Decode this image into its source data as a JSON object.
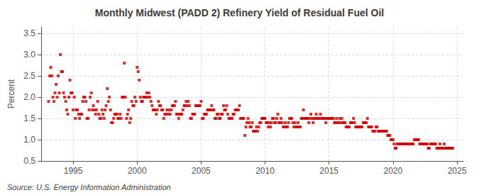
{
  "chart_data": {
    "type": "scatter",
    "title": "Monthly Midwest (PADD 2) Refinery Yield of Residual Fuel Oil",
    "ylabel": "Percent",
    "source": "Source: U.S. Energy Information Administration",
    "color": "#cc0000",
    "marker": "square",
    "grid": true,
    "xlim": [
      1992.5,
      2025.5
    ],
    "ylim": [
      0.5,
      3.65
    ],
    "xticks": [
      1995,
      2000,
      2005,
      2010,
      2015,
      2020,
      2025
    ],
    "yticks": [
      0.5,
      {
        "value": 1.0,
        "label": "1.0"
      },
      1.5,
      {
        "value": 2.0,
        "label": "2.0"
      },
      2.5,
      {
        "value": 3.0,
        "label": "3.0"
      },
      3.5
    ],
    "x": [
      1993.08,
      1993.17,
      1993.25,
      1993.33,
      1993.42,
      1993.5,
      1993.58,
      1993.67,
      1993.75,
      1993.83,
      1993.92,
      1994.0,
      1994.08,
      1994.17,
      1994.25,
      1994.33,
      1994.42,
      1994.5,
      1994.58,
      1994.67,
      1994.75,
      1994.83,
      1994.92,
      1995.0,
      1995.08,
      1995.17,
      1995.25,
      1995.33,
      1995.42,
      1995.5,
      1995.58,
      1995.67,
      1995.75,
      1995.83,
      1995.92,
      1996.0,
      1996.08,
      1996.17,
      1996.25,
      1996.33,
      1996.42,
      1996.5,
      1996.58,
      1996.67,
      1996.75,
      1996.83,
      1996.92,
      1997.0,
      1997.08,
      1997.17,
      1997.25,
      1997.33,
      1997.42,
      1997.5,
      1997.58,
      1997.67,
      1997.75,
      1997.83,
      1997.92,
      1998.0,
      1998.08,
      1998.17,
      1998.25,
      1998.33,
      1998.42,
      1998.5,
      1998.58,
      1998.67,
      1998.75,
      1998.83,
      1998.92,
      1999.0,
      1999.08,
      1999.17,
      1999.25,
      1999.33,
      1999.42,
      1999.5,
      1999.58,
      1999.67,
      1999.75,
      1999.83,
      1999.92,
      2000.0,
      2000.08,
      2000.17,
      2000.25,
      2000.33,
      2000.42,
      2000.5,
      2000.58,
      2000.67,
      2000.75,
      2000.83,
      2000.92,
      2001.0,
      2001.08,
      2001.17,
      2001.25,
      2001.33,
      2001.42,
      2001.5,
      2001.58,
      2001.67,
      2001.75,
      2001.83,
      2001.92,
      2002.0,
      2002.08,
      2002.17,
      2002.25,
      2002.33,
      2002.42,
      2002.5,
      2002.58,
      2002.67,
      2002.75,
      2002.83,
      2002.92,
      2003.0,
      2003.08,
      2003.17,
      2003.25,
      2003.33,
      2003.42,
      2003.5,
      2003.58,
      2003.67,
      2003.75,
      2003.83,
      2003.92,
      2004.0,
      2004.08,
      2004.17,
      2004.25,
      2004.33,
      2004.42,
      2004.5,
      2004.58,
      2004.67,
      2004.75,
      2004.83,
      2004.92,
      2005.0,
      2005.08,
      2005.17,
      2005.25,
      2005.33,
      2005.42,
      2005.5,
      2005.58,
      2005.67,
      2005.75,
      2005.83,
      2005.92,
      2006.0,
      2006.08,
      2006.17,
      2006.25,
      2006.33,
      2006.42,
      2006.5,
      2006.58,
      2006.67,
      2006.75,
      2006.83,
      2006.92,
      2007.0,
      2007.08,
      2007.17,
      2007.25,
      2007.33,
      2007.42,
      2007.5,
      2007.58,
      2007.67,
      2007.75,
      2007.83,
      2007.92,
      2008.0,
      2008.08,
      2008.17,
      2008.25,
      2008.33,
      2008.42,
      2008.5,
      2008.58,
      2008.67,
      2008.75,
      2008.83,
      2008.92,
      2009.0,
      2009.08,
      2009.17,
      2009.25,
      2009.33,
      2009.42,
      2009.5,
      2009.58,
      2009.67,
      2009.75,
      2009.83,
      2009.92,
      2010.0,
      2010.08,
      2010.17,
      2010.25,
      2010.33,
      2010.42,
      2010.5,
      2010.58,
      2010.67,
      2010.75,
      2010.83,
      2010.92,
      2011.0,
      2011.08,
      2011.17,
      2011.25,
      2011.33,
      2011.42,
      2011.5,
      2011.58,
      2011.67,
      2011.75,
      2011.83,
      2011.92,
      2012.0,
      2012.08,
      2012.17,
      2012.25,
      2012.33,
      2012.42,
      2012.5,
      2012.58,
      2012.67,
      2012.75,
      2012.83,
      2012.92,
      2013.0,
      2013.08,
      2013.17,
      2013.25,
      2013.33,
      2013.42,
      2013.5,
      2013.58,
      2013.67,
      2013.75,
      2013.83,
      2013.92,
      2014.0,
      2014.08,
      2014.17,
      2014.25,
      2014.33,
      2014.42,
      2014.5,
      2014.58,
      2014.67,
      2014.75,
      2014.83,
      2014.92,
      2015.0,
      2015.08,
      2015.17,
      2015.25,
      2015.33,
      2015.42,
      2015.5,
      2015.58,
      2015.67,
      2015.75,
      2015.83,
      2015.92,
      2016.0,
      2016.08,
      2016.17,
      2016.25,
      2016.33,
      2016.42,
      2016.5,
      2016.58,
      2016.67,
      2016.75,
      2016.83,
      2016.92,
      2017.0,
      2017.08,
      2017.17,
      2017.25,
      2017.33,
      2017.42,
      2017.5,
      2017.58,
      2017.67,
      2017.75,
      2017.83,
      2017.92,
      2018.0,
      2018.08,
      2018.17,
      2018.25,
      2018.33,
      2018.42,
      2018.5,
      2018.58,
      2018.67,
      2018.75,
      2018.83,
      2018.92,
      2019.0,
      2019.08,
      2019.17,
      2019.25,
      2019.33,
      2019.42,
      2019.5,
      2019.58,
      2019.67,
      2019.75,
      2019.83,
      2019.92,
      2020.0,
      2020.08,
      2020.17,
      2020.25,
      2020.33,
      2020.42,
      2020.5,
      2020.58,
      2020.67,
      2020.75,
      2020.83,
      2020.92,
      2021.0,
      2021.08,
      2021.17,
      2021.25,
      2021.33,
      2021.42,
      2021.5,
      2021.58,
      2021.67,
      2021.75,
      2021.83,
      2021.92,
      2022.0,
      2022.08,
      2022.17,
      2022.25,
      2022.33,
      2022.42,
      2022.5,
      2022.58,
      2022.67,
      2022.75,
      2022.83,
      2022.92,
      2023.0,
      2023.08,
      2023.17,
      2023.25,
      2023.33,
      2023.42,
      2023.5,
      2023.58,
      2023.67,
      2023.75,
      2023.83,
      2023.92,
      2024.0,
      2024.08,
      2024.17,
      2024.25,
      2024.33,
      2024.42,
      2024.5,
      2024.58,
      2024.67
    ],
    "values": [
      1.9,
      2.5,
      2.7,
      2.5,
      2.0,
      1.9,
      2.1,
      2.3,
      2.0,
      2.5,
      2.1,
      3.0,
      2.6,
      2.6,
      2.1,
      2.0,
      1.9,
      1.7,
      1.6,
      2.0,
      2.4,
      2.1,
      2.1,
      1.7,
      2.0,
      1.5,
      1.7,
      1.7,
      1.6,
      1.5,
      1.6,
      1.6,
      1.9,
      2.0,
      2.0,
      1.9,
      1.5,
      1.5,
      1.7,
      2.0,
      2.1,
      1.7,
      1.8,
      1.7,
      1.6,
      1.7,
      1.9,
      1.6,
      1.5,
      1.5,
      1.7,
      1.6,
      1.5,
      1.7,
      1.8,
      2.2,
      1.9,
      2.0,
      1.7,
      1.4,
      1.4,
      1.5,
      1.6,
      1.6,
      1.6,
      1.5,
      1.5,
      1.6,
      1.5,
      2.0,
      2.0,
      2.8,
      2.0,
      1.5,
      1.6,
      1.7,
      1.4,
      1.5,
      1.9,
      1.8,
      1.8,
      2.0,
      1.9,
      2.7,
      2.6,
      2.4,
      2.0,
      1.9,
      1.9,
      2.0,
      2.0,
      2.0,
      2.1,
      2.0,
      2.1,
      2.0,
      1.9,
      1.8,
      1.7,
      1.7,
      1.7,
      1.6,
      1.7,
      1.9,
      1.8,
      1.8,
      1.7,
      1.7,
      1.5,
      1.6,
      1.6,
      1.7,
      1.6,
      1.7,
      1.6,
      1.7,
      1.8,
      1.8,
      1.8,
      1.9,
      1.6,
      1.6,
      1.5,
      1.6,
      1.6,
      1.6,
      1.7,
      1.8,
      1.8,
      1.9,
      1.8,
      1.9,
      1.8,
      1.5,
      1.5,
      1.6,
      1.6,
      1.6,
      1.8,
      1.8,
      1.8,
      1.8,
      1.8,
      1.9,
      1.5,
      1.5,
      1.6,
      1.6,
      1.6,
      1.7,
      1.7,
      1.7,
      1.7,
      1.8,
      1.7,
      1.7,
      1.5,
      1.5,
      1.6,
      1.6,
      1.5,
      1.5,
      1.6,
      1.6,
      1.8,
      1.7,
      1.7,
      1.8,
      1.6,
      1.5,
      1.5,
      1.5,
      1.5,
      1.6,
      1.6,
      1.7,
      1.7,
      1.7,
      1.7,
      1.8,
      1.5,
      1.5,
      1.5,
      1.5,
      1.1,
      1.3,
      1.4,
      1.5,
      1.4,
      1.3,
      1.3,
      1.4,
      1.2,
      1.2,
      1.2,
      1.3,
      1.2,
      1.3,
      1.4,
      1.4,
      1.5,
      1.5,
      1.5,
      1.5,
      1.4,
      1.4,
      1.3,
      1.4,
      1.3,
      1.4,
      1.5,
      1.5,
      1.4,
      1.4,
      1.5,
      1.6,
      1.4,
      1.4,
      1.5,
      1.4,
      1.3,
      1.3,
      1.4,
      1.3,
      1.3,
      1.4,
      1.5,
      1.5,
      1.5,
      1.4,
      1.3,
      1.4,
      1.3,
      1.3,
      1.4,
      1.3,
      1.3,
      1.5,
      1.5,
      1.7,
      1.5,
      1.5,
      1.5,
      1.5,
      1.4,
      1.5,
      1.6,
      1.5,
      1.4,
      1.5,
      1.5,
      1.6,
      1.5,
      1.5,
      1.5,
      1.6,
      1.5,
      1.5,
      1.5,
      1.5,
      1.4,
      1.5,
      1.5,
      1.5,
      1.5,
      1.5,
      1.5,
      1.5,
      1.4,
      1.4,
      1.5,
      1.4,
      1.4,
      1.5,
      1.4,
      1.5,
      1.4,
      1.4,
      1.4,
      1.3,
      1.3,
      1.3,
      1.3,
      1.4,
      1.4,
      1.4,
      1.5,
      1.4,
      1.3,
      1.3,
      1.3,
      1.3,
      1.3,
      1.3,
      1.3,
      1.4,
      1.4,
      1.4,
      1.4,
      1.5,
      1.3,
      1.3,
      1.3,
      1.3,
      1.2,
      1.2,
      1.2,
      1.3,
      1.3,
      1.2,
      1.2,
      1.2,
      1.2,
      1.2,
      1.2,
      1.2,
      1.2,
      1.2,
      1.1,
      1.1,
      1.1,
      1.0,
      1.0,
      1.0,
      0.9,
      0.8,
      0.8,
      0.9,
      0.9,
      0.9,
      0.9,
      0.9,
      0.9,
      0.9,
      0.9,
      0.9,
      0.9,
      0.9,
      0.9,
      0.9,
      0.9,
      0.9,
      0.9,
      1.0,
      1.0,
      1.0,
      1.0,
      1.0,
      0.9,
      0.9,
      0.9,
      0.9,
      0.9,
      0.9,
      0.9,
      0.9,
      0.8,
      0.8,
      0.9,
      0.9,
      0.9,
      0.9,
      0.9,
      0.9,
      0.8,
      0.8,
      0.8,
      0.9,
      0.8,
      0.8,
      0.8,
      0.9,
      0.8,
      0.8,
      0.8,
      0.8,
      0.8,
      0.8,
      0.8,
      0.8
    ]
  }
}
